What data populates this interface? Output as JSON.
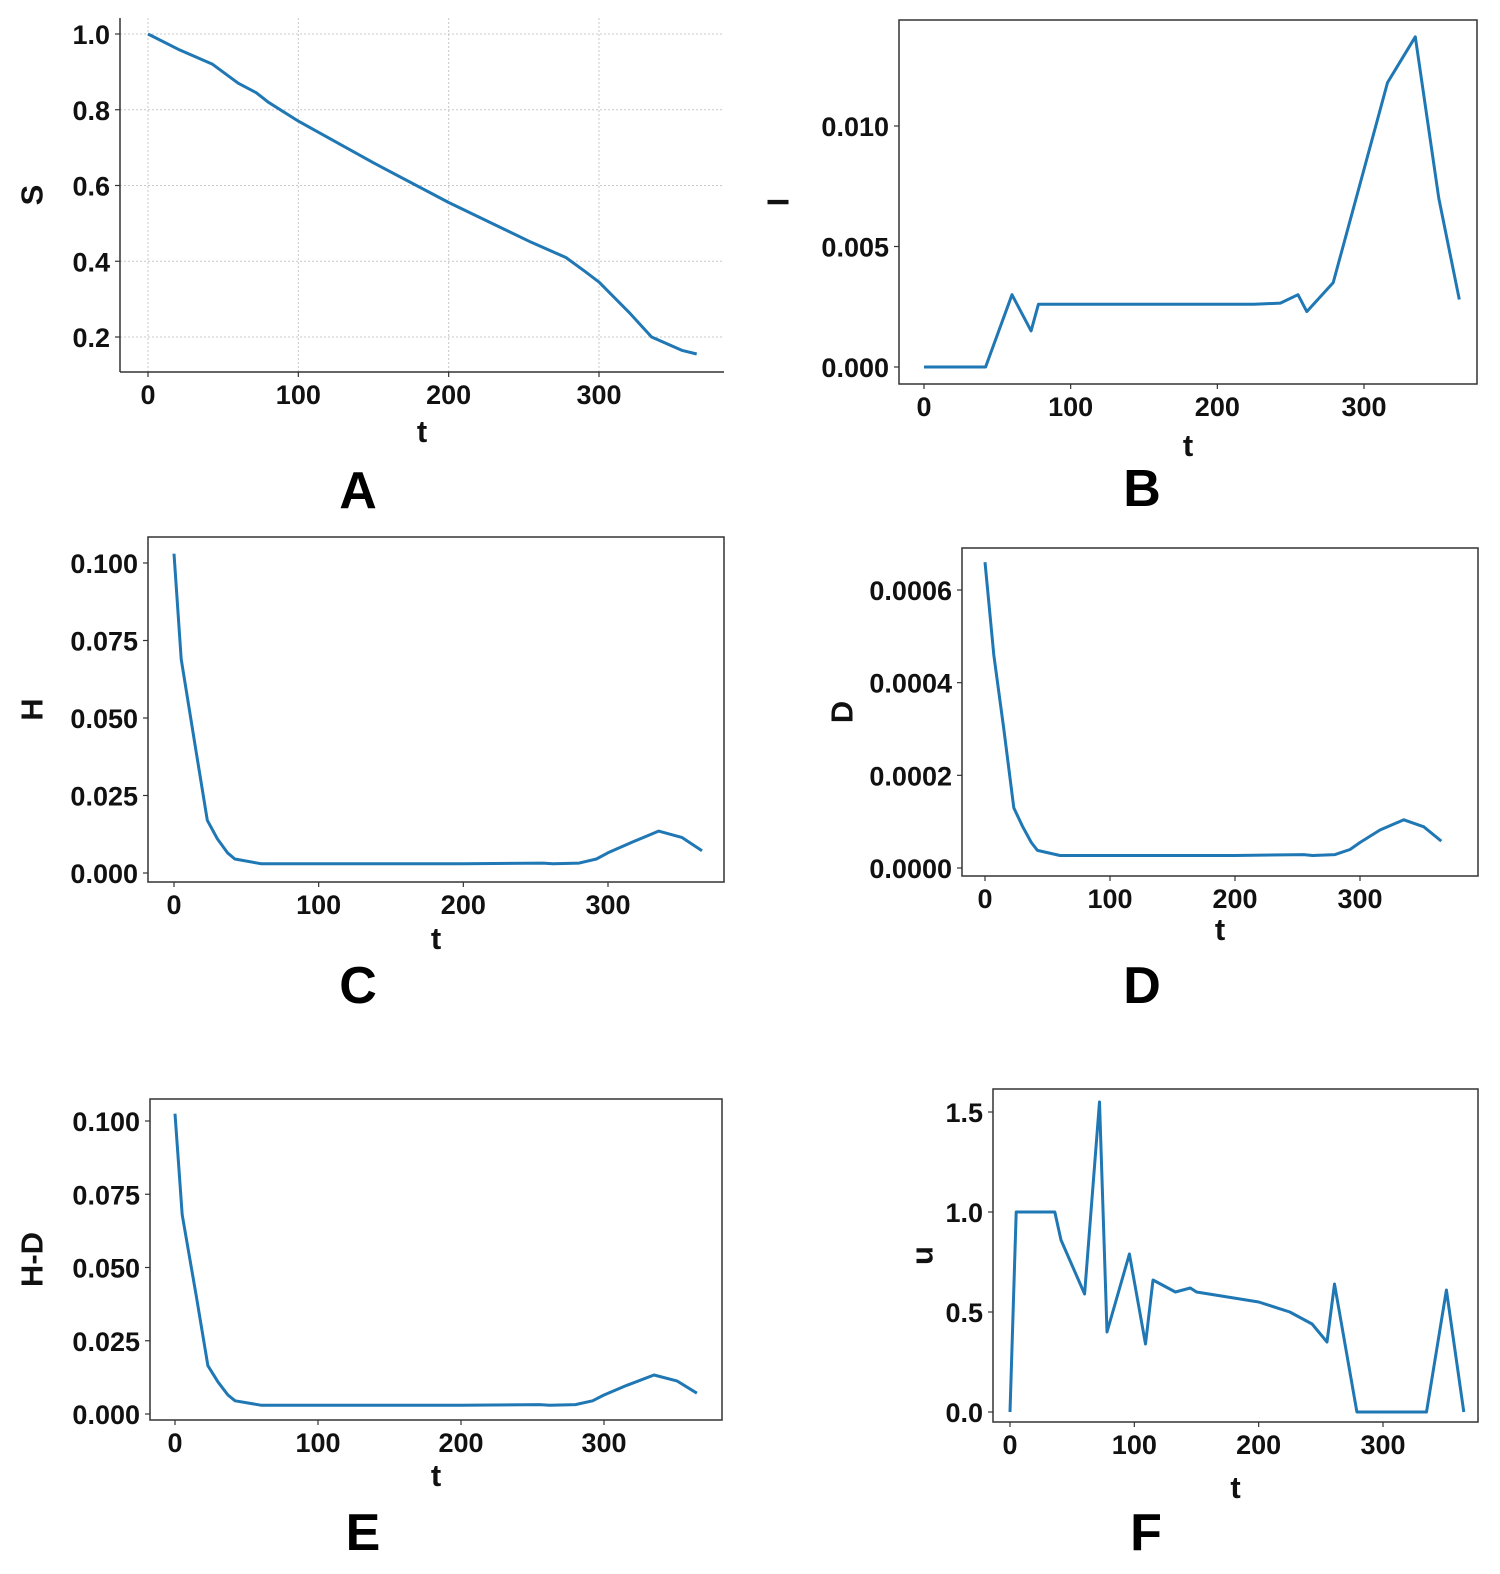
{
  "colors": {
    "line": "#1f77b4",
    "axis": "#333333",
    "grid": "#c8c8c8"
  },
  "chart_data": [
    {
      "panel": "A",
      "type": "line",
      "xlabel": "t",
      "ylabel": "S",
      "grid": true,
      "frame": "left-bottom",
      "xlim": [
        -18,
        385
      ],
      "ylim": [
        0.12,
        1.04
      ],
      "xticks": [
        0,
        100,
        200,
        300
      ],
      "xtick_labels": [
        "0",
        "100",
        "200",
        "300"
      ],
      "yticks": [
        0.2,
        0.4,
        0.6,
        0.8,
        1.0
      ],
      "ytick_labels": [
        "0.2",
        "0.4",
        "0.6",
        "0.8",
        "1.0"
      ],
      "x": [
        0,
        20,
        43,
        60,
        72,
        80,
        100,
        150,
        200,
        255,
        278,
        290,
        300,
        320,
        335,
        355,
        365
      ],
      "y": [
        1.0,
        0.96,
        0.92,
        0.87,
        0.845,
        0.82,
        0.77,
        0.66,
        0.555,
        0.45,
        0.41,
        0.375,
        0.345,
        0.265,
        0.2,
        0.165,
        0.155
      ]
    },
    {
      "panel": "B",
      "type": "line",
      "xlabel": "t",
      "ylabel": "I",
      "grid": false,
      "frame": "box",
      "xlim": [
        -18,
        385
      ],
      "ylim": [
        -0.0007,
        0.0145
      ],
      "xticks": [
        0,
        100,
        200,
        300
      ],
      "xtick_labels": [
        "0",
        "100",
        "200",
        "300"
      ],
      "yticks": [
        0.0,
        0.005,
        0.01
      ],
      "ytick_labels": [
        "0.000",
        "0.005",
        "0.010"
      ],
      "x": [
        0,
        42,
        60,
        73,
        78,
        100,
        200,
        225,
        243,
        255,
        261,
        279,
        300,
        316,
        335,
        351,
        365
      ],
      "y": [
        0.0,
        0.0,
        0.003,
        0.0015,
        0.0026,
        0.0026,
        0.0026,
        0.0026,
        0.00265,
        0.003,
        0.0023,
        0.0035,
        0.0082,
        0.0118,
        0.0137,
        0.007,
        0.0028
      ]
    },
    {
      "panel": "C",
      "type": "line",
      "xlabel": "t",
      "ylabel": "H",
      "grid": false,
      "frame": "box",
      "xlim": [
        -18,
        385
      ],
      "ylim": [
        -0.0025,
        0.108
      ],
      "xticks": [
        0,
        100,
        200,
        300
      ],
      "xtick_labels": [
        "0",
        "100",
        "200",
        "300"
      ],
      "yticks": [
        0.0,
        0.025,
        0.05,
        0.075,
        0.1
      ],
      "ytick_labels": [
        "0.000",
        "0.025",
        "0.050",
        "0.075",
        "0.100"
      ],
      "x": [
        0,
        5,
        15,
        23,
        30,
        37,
        42,
        60,
        100,
        200,
        255,
        262,
        280,
        292,
        300,
        316,
        335,
        351,
        365
      ],
      "y": [
        0.103,
        0.069,
        0.04,
        0.017,
        0.011,
        0.0065,
        0.0045,
        0.003,
        0.003,
        0.003,
        0.0032,
        0.003,
        0.0032,
        0.0045,
        0.0065,
        0.0098,
        0.0135,
        0.0115,
        0.0072
      ]
    },
    {
      "panel": "D",
      "type": "line",
      "xlabel": "t",
      "ylabel": "D",
      "grid": false,
      "frame": "box",
      "xlim": [
        -18,
        385
      ],
      "ylim": [
        -2e-05,
        0.00068
      ],
      "xticks": [
        0,
        100,
        200,
        300
      ],
      "xtick_labels": [
        "0",
        "100",
        "200",
        "300"
      ],
      "yticks": [
        0.0,
        0.0002,
        0.0004,
        0.0006
      ],
      "ytick_labels": [
        "0.0000",
        "0.0002",
        "0.0004",
        "0.0006"
      ],
      "x": [
        0,
        7,
        15,
        23,
        30,
        37,
        42,
        60,
        100,
        200,
        255,
        262,
        280,
        292,
        300,
        316,
        335,
        351,
        365
      ],
      "y": [
        0.00066,
        0.00046,
        0.0003,
        0.00013,
        9e-05,
        5.5e-05,
        3.8e-05,
        2.7e-05,
        2.7e-05,
        2.7e-05,
        2.9e-05,
        2.7e-05,
        2.9e-05,
        4e-05,
        5.5e-05,
        8.2e-05,
        0.000104,
        8.9e-05,
        5.8e-05
      ]
    },
    {
      "panel": "E",
      "type": "line",
      "xlabel": "t",
      "ylabel": "H-D",
      "grid": false,
      "frame": "box",
      "xlim": [
        -18,
        385
      ],
      "ylim": [
        -0.0025,
        0.107
      ],
      "xticks": [
        0,
        100,
        200,
        300
      ],
      "xtick_labels": [
        "0",
        "100",
        "200",
        "300"
      ],
      "yticks": [
        0.0,
        0.025,
        0.05,
        0.075,
        0.1
      ],
      "ytick_labels": [
        "0.000",
        "0.025",
        "0.050",
        "0.075",
        "0.100"
      ],
      "x": [
        0,
        5,
        15,
        23,
        30,
        37,
        42,
        60,
        100,
        200,
        255,
        262,
        280,
        292,
        300,
        316,
        335,
        351,
        365
      ],
      "y": [
        0.1025,
        0.068,
        0.04,
        0.0165,
        0.011,
        0.0065,
        0.0045,
        0.003,
        0.003,
        0.003,
        0.0032,
        0.003,
        0.0032,
        0.0045,
        0.0065,
        0.0098,
        0.0133,
        0.0113,
        0.0071
      ]
    },
    {
      "panel": "F",
      "type": "line",
      "xlabel": "t",
      "ylabel": "u",
      "grid": false,
      "frame": "box",
      "xlim": [
        -18,
        385
      ],
      "ylim": [
        -0.08,
        1.62
      ],
      "xticks": [
        0,
        100,
        200,
        300
      ],
      "xtick_labels": [
        "0",
        "100",
        "200",
        "300"
      ],
      "yticks": [
        0.0,
        0.5,
        1.0,
        1.5
      ],
      "ytick_labels": [
        "0.0",
        "0.5",
        "1.0",
        "1.5"
      ],
      "x": [
        0,
        5,
        36,
        41,
        60,
        72,
        78,
        96,
        109,
        115,
        133,
        145,
        150,
        200,
        225,
        243,
        255,
        261,
        279,
        335,
        351,
        365
      ],
      "y": [
        0.0,
        1.0,
        1.0,
        0.86,
        0.59,
        1.55,
        0.4,
        0.79,
        0.34,
        0.66,
        0.6,
        0.62,
        0.6,
        0.55,
        0.5,
        0.44,
        0.35,
        0.64,
        0.0,
        0.0,
        0.61,
        0.0
      ]
    }
  ]
}
